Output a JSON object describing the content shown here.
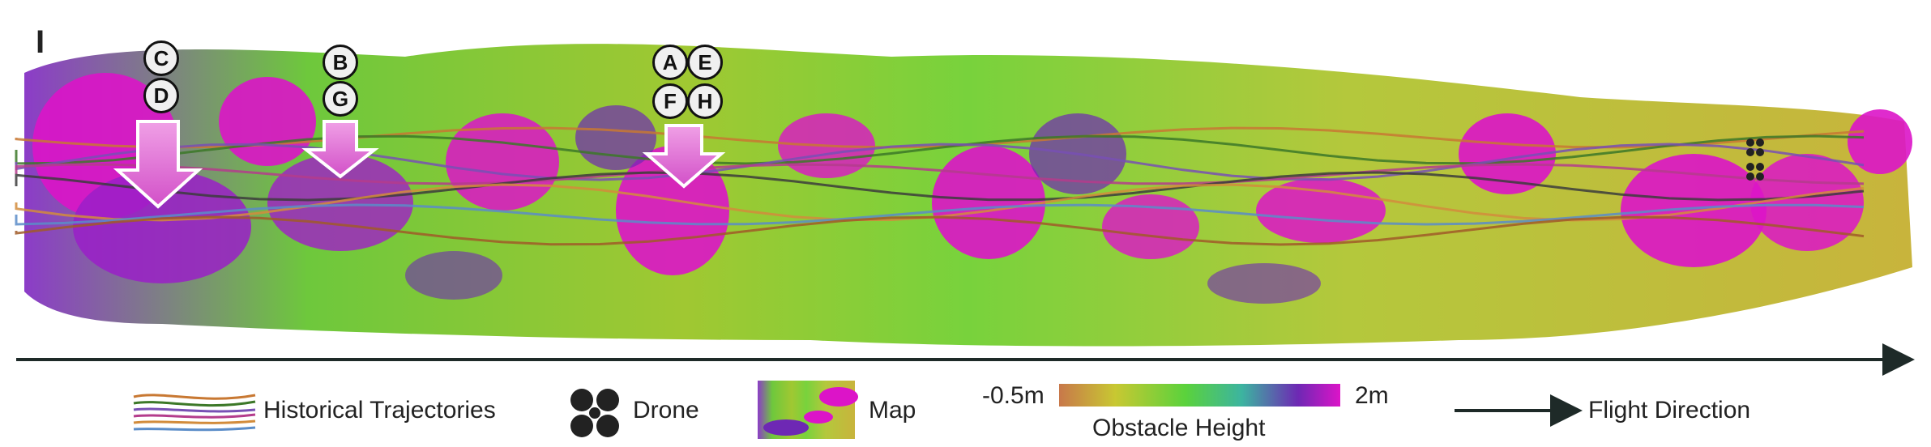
{
  "panel_label": "I",
  "markers": [
    {
      "id": "C"
    },
    {
      "id": "D"
    },
    {
      "id": "B"
    },
    {
      "id": "G"
    },
    {
      "id": "A"
    },
    {
      "id": "E"
    },
    {
      "id": "F"
    },
    {
      "id": "H"
    }
  ],
  "legend": {
    "trajectories": "Historical Trajectories",
    "drone": "Drone",
    "map": "Map",
    "colorbar_min": "-0.5m",
    "colorbar_max": "2m",
    "colorbar_title": "Obstacle Height",
    "flight_direction": "Flight Direction"
  },
  "colors": {
    "low": "#c8784a",
    "yellow": "#c8c832",
    "green": "#5ad23c",
    "teal": "#3cb4a0",
    "purple": "#6e28b4",
    "magenta": "#dc14c8",
    "arrow_fill": "#e678d2"
  },
  "trajectory_colors": [
    "#c87832",
    "#3c7828",
    "#7850b4",
    "#b43c8c",
    "#3c3c3c",
    "#d28c3c",
    "#5a8cc8",
    "#a05a28"
  ]
}
